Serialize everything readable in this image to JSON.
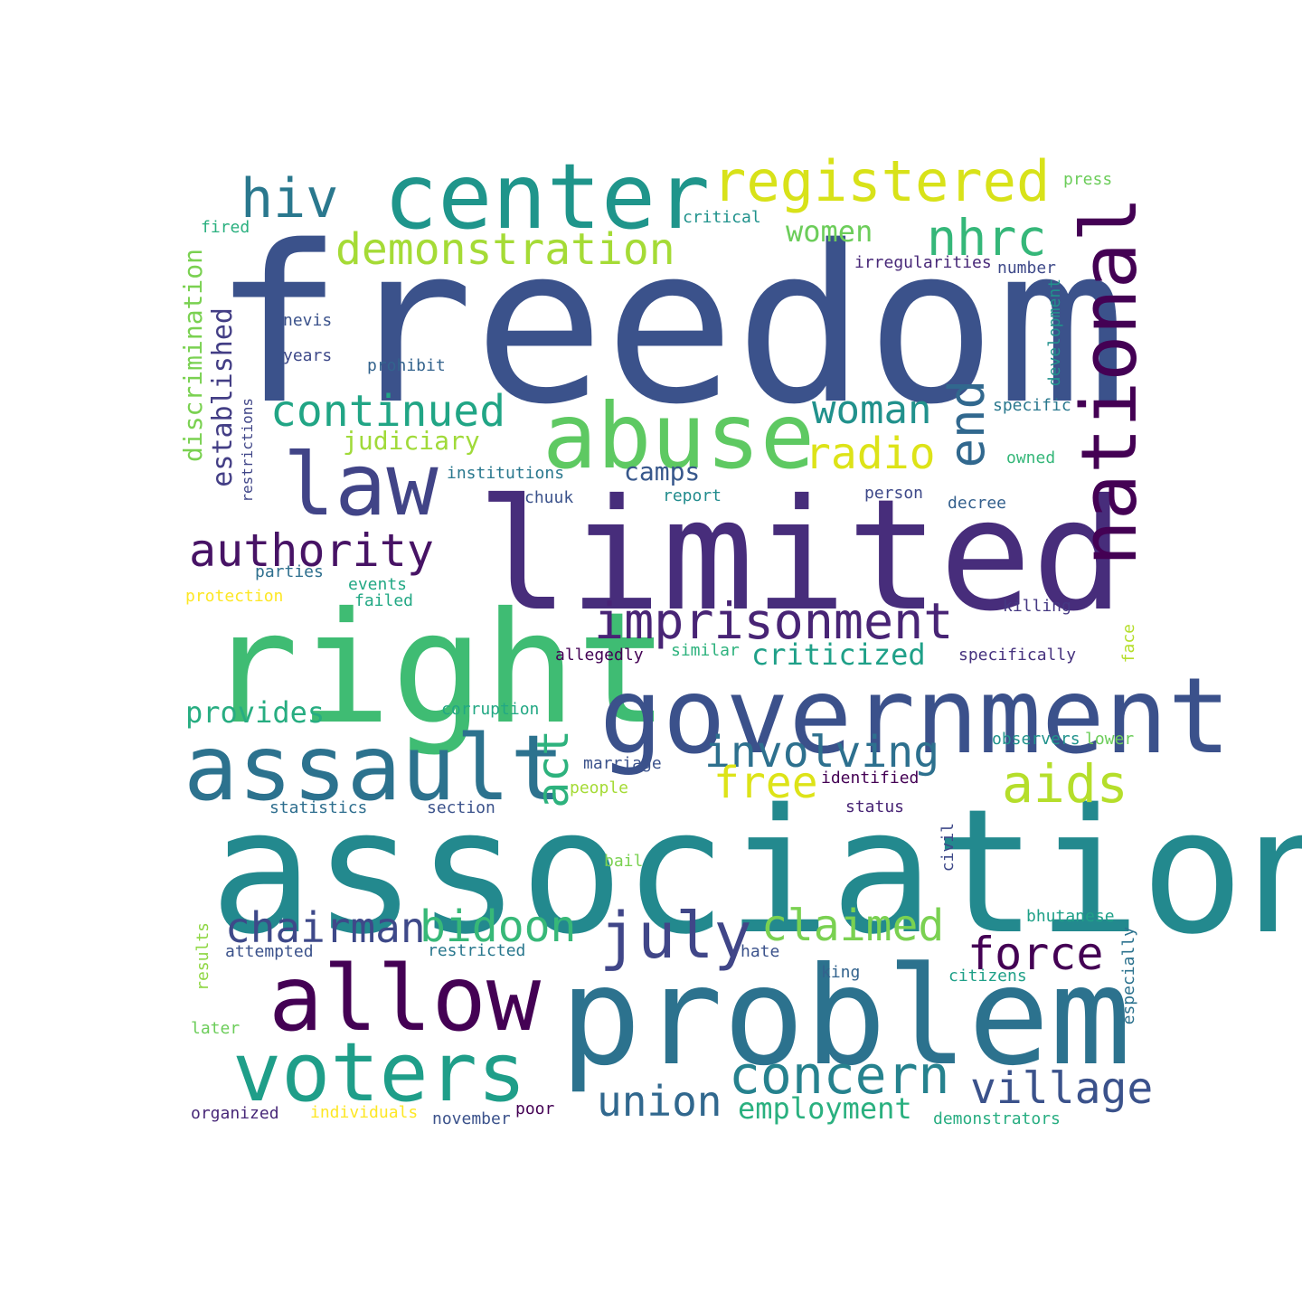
{
  "words": [
    {
      "text": "freedom",
      "color": "#3b528b",
      "orient": "h"
    },
    {
      "text": "association",
      "color": "#23898e",
      "orient": "h"
    },
    {
      "text": "limited",
      "color": "#472d7b",
      "orient": "h"
    },
    {
      "text": "right",
      "color": "#3fbc73",
      "orient": "h"
    },
    {
      "text": "problem",
      "color": "#2c728e",
      "orient": "h"
    },
    {
      "text": "government",
      "color": "#3b518b",
      "orient": "h"
    },
    {
      "text": "center",
      "color": "#1f958b",
      "orient": "h"
    },
    {
      "text": "allow",
      "color": "#440154",
      "orient": "h"
    },
    {
      "text": "assault",
      "color": "#2c728e",
      "orient": "h"
    },
    {
      "text": "abuse",
      "color": "#5ec962",
      "orient": "h"
    },
    {
      "text": "voters",
      "color": "#1f9e89",
      "orient": "h"
    },
    {
      "text": "national",
      "color": "#440154",
      "orient": "v"
    },
    {
      "text": "law",
      "color": "#414487",
      "orient": "h"
    },
    {
      "text": "registered",
      "color": "#d8e219",
      "orient": "h"
    },
    {
      "text": "imprisonment",
      "color": "#482475",
      "orient": "h"
    },
    {
      "text": "concern",
      "color": "#26828e",
      "orient": "h"
    },
    {
      "text": "july",
      "color": "#404688",
      "orient": "h"
    },
    {
      "text": "hiv",
      "color": "#2a788e",
      "orient": "h"
    },
    {
      "text": "demonstration",
      "color": "#a5db36",
      "orient": "h"
    },
    {
      "text": "continued",
      "color": "#21a585",
      "orient": "h"
    },
    {
      "text": "authority",
      "color": "#471365",
      "orient": "h"
    },
    {
      "text": "involving",
      "color": "#2d708e",
      "orient": "h"
    },
    {
      "text": "aids",
      "color": "#b5de2b",
      "orient": "h"
    },
    {
      "text": "village",
      "color": "#3b528b",
      "orient": "h"
    },
    {
      "text": "chairman",
      "color": "#3e4989",
      "orient": "h"
    },
    {
      "text": "bidoon",
      "color": "#37b878",
      "orient": "h"
    },
    {
      "text": "claimed",
      "color": "#7ad151",
      "orient": "h"
    },
    {
      "text": "force",
      "color": "#440154",
      "orient": "h"
    },
    {
      "text": "union",
      "color": "#31688e",
      "orient": "h"
    },
    {
      "text": "nhrc",
      "color": "#35b779",
      "orient": "h"
    },
    {
      "text": "end",
      "color": "#31688e",
      "orient": "v"
    },
    {
      "text": "radio",
      "color": "#dde318",
      "orient": "h"
    },
    {
      "text": "woman",
      "color": "#21918c",
      "orient": "h"
    },
    {
      "text": "free",
      "color": "#dde318",
      "orient": "h"
    },
    {
      "text": "act",
      "color": "#2db27d",
      "orient": "v"
    },
    {
      "text": "criticized",
      "color": "#1fa088",
      "orient": "h"
    },
    {
      "text": "employment",
      "color": "#2ab07f",
      "orient": "h"
    },
    {
      "text": "women",
      "color": "#6ccd5a",
      "orient": "h"
    },
    {
      "text": "provides",
      "color": "#27ad81",
      "orient": "h"
    },
    {
      "text": "judiciary",
      "color": "#a0da39",
      "orient": "h"
    },
    {
      "text": "camps",
      "color": "#38588c",
      "orient": "h"
    },
    {
      "text": "established",
      "color": "#433e85",
      "orient": "v"
    },
    {
      "text": "discrimination",
      "color": "#7ad151",
      "orient": "v"
    },
    {
      "text": "restrictions",
      "color": "#404688",
      "orient": "v"
    },
    {
      "text": "press",
      "color": "#6ccd5a",
      "orient": "h"
    },
    {
      "text": "critical",
      "color": "#20928c",
      "orient": "h"
    },
    {
      "text": "fired",
      "color": "#2ab07f",
      "orient": "h"
    },
    {
      "text": "irregularities",
      "color": "#482878",
      "orient": "h"
    },
    {
      "text": "number",
      "color": "#3e4989",
      "orient": "h"
    },
    {
      "text": "development",
      "color": "#21918c",
      "orient": "v"
    },
    {
      "text": "nevis",
      "color": "#3b528b",
      "orient": "h"
    },
    {
      "text": "years",
      "color": "#3e4989",
      "orient": "h"
    },
    {
      "text": "prohibit",
      "color": "#33638d",
      "orient": "h"
    },
    {
      "text": "specific",
      "color": "#2a788e",
      "orient": "h"
    },
    {
      "text": "owned",
      "color": "#35b779",
      "orient": "h"
    },
    {
      "text": "institutions",
      "color": "#2a788e",
      "orient": "h"
    },
    {
      "text": "chuuk",
      "color": "#3b528b",
      "orient": "h"
    },
    {
      "text": "report",
      "color": "#228c8d",
      "orient": "h"
    },
    {
      "text": "person",
      "color": "#3e4989",
      "orient": "h"
    },
    {
      "text": "decree",
      "color": "#34608d",
      "orient": "h"
    },
    {
      "text": "parties",
      "color": "#2e6f8e",
      "orient": "h"
    },
    {
      "text": "events",
      "color": "#22a884",
      "orient": "h"
    },
    {
      "text": "protection",
      "color": "#fde725",
      "orient": "h"
    },
    {
      "text": "failed",
      "color": "#22a884",
      "orient": "h"
    },
    {
      "text": "killing",
      "color": "#453882",
      "orient": "h"
    },
    {
      "text": "allegedly",
      "color": "#440154",
      "orient": "h"
    },
    {
      "text": "similar",
      "color": "#2db27d",
      "orient": "h"
    },
    {
      "text": "specifically",
      "color": "#46327e",
      "orient": "h"
    },
    {
      "text": "face",
      "color": "#b5de2b",
      "orient": "v"
    },
    {
      "text": "corruption",
      "color": "#22a884",
      "orient": "h"
    },
    {
      "text": "marriage",
      "color": "#3b528b",
      "orient": "h"
    },
    {
      "text": "observers",
      "color": "#20928c",
      "orient": "h"
    },
    {
      "text": "lower",
      "color": "#6ccd5a",
      "orient": "h"
    },
    {
      "text": "people",
      "color": "#a5db36",
      "orient": "h"
    },
    {
      "text": "identified",
      "color": "#440154",
      "orient": "h"
    },
    {
      "text": "statistics",
      "color": "#2e6e8e",
      "orient": "h"
    },
    {
      "text": "section",
      "color": "#3b528b",
      "orient": "h"
    },
    {
      "text": "status",
      "color": "#482475",
      "orient": "h"
    },
    {
      "text": "civil",
      "color": "#3e4989",
      "orient": "v"
    },
    {
      "text": "bail",
      "color": "#7ad151",
      "orient": "h"
    },
    {
      "text": "bhutanese",
      "color": "#1fa088",
      "orient": "h"
    },
    {
      "text": "results",
      "color": "#8fd744",
      "orient": "v"
    },
    {
      "text": "attempted",
      "color": "#3b528b",
      "orient": "h"
    },
    {
      "text": "restricted",
      "color": "#2a788e",
      "orient": "h"
    },
    {
      "text": "hate",
      "color": "#3b528b",
      "orient": "h"
    },
    {
      "text": "especially",
      "color": "#2c728e",
      "orient": "v"
    },
    {
      "text": "king",
      "color": "#33638d",
      "orient": "h"
    },
    {
      "text": "citizens",
      "color": "#1fa088",
      "orient": "h"
    },
    {
      "text": "later",
      "color": "#6ccd5a",
      "orient": "h"
    },
    {
      "text": "organized",
      "color": "#482878",
      "orient": "h"
    },
    {
      "text": "individuals",
      "color": "#fde725",
      "orient": "h"
    },
    {
      "text": "november",
      "color": "#3b528b",
      "orient": "h"
    },
    {
      "text": "poor",
      "color": "#440154",
      "orient": "h"
    },
    {
      "text": "demonstrators",
      "color": "#27ad81",
      "orient": "h"
    }
  ]
}
